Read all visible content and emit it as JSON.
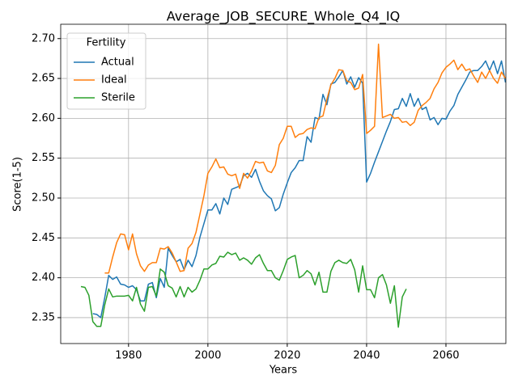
{
  "chart_data": {
    "type": "line",
    "title": "Average_JOB_SECURE_Whole_Q4_IQ",
    "xlabel": "Years",
    "ylabel": "Score(1-5)",
    "legend_title": "Fertility",
    "legend": "upper left",
    "grid": true,
    "x": [
      1968,
      1969,
      1970,
      1971,
      1972,
      1973,
      1974,
      1975,
      1976,
      1977,
      1978,
      1979,
      1980,
      1981,
      1982,
      1983,
      1984,
      1985,
      1986,
      1987,
      1988,
      1989,
      1990,
      1991,
      1992,
      1993,
      1994,
      1995,
      1996,
      1997,
      1998,
      1999,
      2000,
      2001,
      2002,
      2003,
      2004,
      2005,
      2006,
      2007,
      2008,
      2009,
      2010,
      2011,
      2012,
      2013,
      2014,
      2015,
      2016,
      2017,
      2018,
      2019,
      2020,
      2021,
      2022,
      2023,
      2024,
      2025,
      2026,
      2027,
      2028,
      2029,
      2030,
      2031,
      2032,
      2033,
      2034,
      2035,
      2036,
      2037,
      2038,
      2039,
      2040,
      2041,
      2042,
      2043,
      2044,
      2045,
      2046,
      2047,
      2048,
      2049,
      2050,
      2051,
      2052,
      2053,
      2054,
      2055,
      2056,
      2057,
      2058,
      2059,
      2060,
      2061,
      2062,
      2063,
      2064,
      2065,
      2066,
      2067,
      2068,
      2069,
      2070,
      2071,
      2072,
      2073,
      2074,
      2075
    ],
    "series": [
      {
        "name": "Actual",
        "color": "#1f77b4",
        "values": [
          null,
          null,
          null,
          2.355,
          2.354,
          2.35,
          2.375,
          2.403,
          2.398,
          2.401,
          2.392,
          2.391,
          2.388,
          2.39,
          2.385,
          2.371,
          2.371,
          2.392,
          2.394,
          2.375,
          2.399,
          2.388,
          2.437,
          2.428,
          2.42,
          2.423,
          2.41,
          2.422,
          2.414,
          2.428,
          2.451,
          2.468,
          2.485,
          2.485,
          2.493,
          2.48,
          2.5,
          2.492,
          2.511,
          2.513,
          2.515,
          2.528,
          2.531,
          2.526,
          2.536,
          2.521,
          2.509,
          2.503,
          2.499,
          2.484,
          2.488,
          2.505,
          2.519,
          2.532,
          2.538,
          2.547,
          2.547,
          2.577,
          2.57,
          2.601,
          2.599,
          2.63,
          2.617,
          2.643,
          2.645,
          2.652,
          2.66,
          2.643,
          2.652,
          2.639,
          2.651,
          2.644,
          2.52,
          2.531,
          2.545,
          2.558,
          2.571,
          2.584,
          2.596,
          2.611,
          2.612,
          2.625,
          2.615,
          2.631,
          2.615,
          2.625,
          2.611,
          2.614,
          2.598,
          2.601,
          2.592,
          2.6,
          2.599,
          2.609,
          2.616,
          2.63,
          2.639,
          2.648,
          2.658,
          2.66,
          2.66,
          2.665,
          2.672,
          2.66,
          2.672,
          2.656,
          2.672,
          2.645
        ]
      },
      {
        "name": "Ideal",
        "color": "#ff7f0e",
        "values": [
          null,
          null,
          null,
          null,
          null,
          null,
          2.406,
          2.406,
          2.426,
          2.444,
          2.455,
          2.454,
          2.435,
          2.455,
          2.43,
          2.415,
          2.408,
          2.416,
          2.419,
          2.419,
          2.437,
          2.436,
          2.439,
          2.431,
          2.42,
          2.408,
          2.409,
          2.437,
          2.443,
          2.457,
          2.48,
          2.503,
          2.531,
          2.539,
          2.549,
          2.538,
          2.539,
          2.53,
          2.528,
          2.53,
          2.512,
          2.531,
          2.525,
          2.534,
          2.546,
          2.544,
          2.545,
          2.534,
          2.532,
          2.541,
          2.567,
          2.575,
          2.59,
          2.59,
          2.576,
          2.58,
          2.581,
          2.586,
          2.588,
          2.587,
          2.601,
          2.603,
          2.624,
          2.642,
          2.65,
          2.661,
          2.66,
          2.647,
          2.645,
          2.636,
          2.638,
          2.655,
          2.581,
          2.585,
          2.59,
          2.693,
          2.601,
          2.603,
          2.605,
          2.6,
          2.601,
          2.595,
          2.596,
          2.591,
          2.595,
          2.61,
          2.616,
          2.62,
          2.625,
          2.637,
          2.645,
          2.657,
          2.664,
          2.668,
          2.673,
          2.661,
          2.668,
          2.66,
          2.662,
          2.653,
          2.645,
          2.658,
          2.65,
          2.66,
          2.65,
          2.644,
          2.658,
          2.65
        ]
      },
      {
        "name": "Sterile",
        "color": "#2ca02c",
        "values": [
          2.389,
          2.388,
          2.378,
          2.345,
          2.339,
          2.339,
          2.366,
          2.386,
          2.376,
          2.377,
          2.377,
          2.377,
          2.378,
          2.371,
          2.388,
          2.367,
          2.358,
          2.388,
          2.389,
          2.377,
          2.411,
          2.407,
          2.39,
          2.387,
          2.376,
          2.389,
          2.376,
          2.388,
          2.382,
          2.386,
          2.397,
          2.411,
          2.411,
          2.416,
          2.418,
          2.427,
          2.426,
          2.432,
          2.429,
          2.431,
          2.422,
          2.425,
          2.422,
          2.417,
          2.425,
          2.429,
          2.418,
          2.409,
          2.409,
          2.4,
          2.397,
          2.409,
          2.423,
          2.426,
          2.428,
          2.4,
          2.403,
          2.409,
          2.405,
          2.391,
          2.407,
          2.382,
          2.382,
          2.408,
          2.419,
          2.422,
          2.419,
          2.418,
          2.423,
          2.41,
          2.382,
          2.415,
          2.385,
          2.385,
          2.375,
          2.4,
          2.404,
          2.391,
          2.368,
          2.39,
          2.338,
          2.376,
          2.386,
          null,
          null,
          null,
          null,
          null,
          null,
          null,
          null,
          null,
          null,
          null,
          null,
          null,
          null,
          null,
          null,
          null,
          null,
          null,
          null,
          null,
          null,
          null,
          null,
          null
        ]
      }
    ],
    "xlim": [
      1962.9,
      2075.1
    ],
    "xticks": [
      1980,
      2000,
      2020,
      2040,
      2060
    ],
    "ylim": [
      2.3175,
      2.718
    ],
    "yticks": [
      2.35,
      {
        "value": 2.4,
        "label": "2.40"
      },
      2.45,
      {
        "value": 2.5,
        "label": "2.50"
      },
      2.55,
      {
        "value": 2.6,
        "label": "2.60"
      },
      2.65,
      {
        "value": 2.7,
        "label": "2.70"
      }
    ]
  }
}
